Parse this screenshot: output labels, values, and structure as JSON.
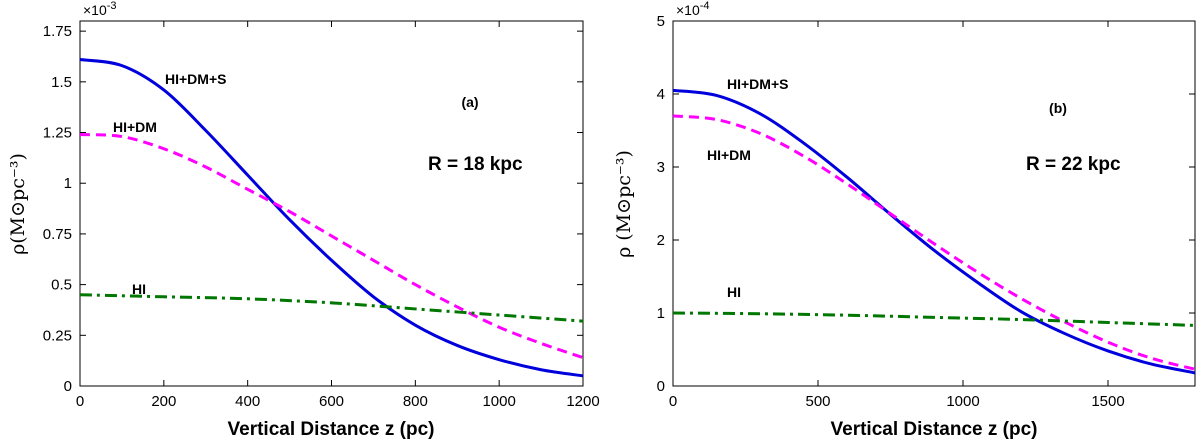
{
  "chart_data": [
    {
      "type": "line",
      "panel_label": "(a)",
      "radius_label": "R = 18 kpc",
      "scale_label": "×10",
      "scale_exp": "-3",
      "xlabel": "Vertical Distance z (pc)",
      "ylabel": "ρ(M⊙pc⁻³)",
      "xlim": [
        0,
        1200
      ],
      "ylim": [
        0,
        1.8
      ],
      "xticks": [
        0,
        200,
        400,
        600,
        800,
        1000,
        1200
      ],
      "xtick_labels": [
        "0",
        "200",
        "400",
        "600",
        "800",
        "1000",
        "1200"
      ],
      "yticks": [
        0,
        0.25,
        0.5,
        0.75,
        1,
        1.25,
        1.5,
        1.75
      ],
      "ytick_labels": [
        "0",
        "0.25",
        "0.5",
        "0.75",
        "1",
        "1.25",
        "1.5",
        "1.75"
      ],
      "series": [
        {
          "name": "HI+DM+S",
          "color": "#0000dd",
          "style": "solid",
          "x": [
            0,
            100,
            200,
            300,
            400,
            500,
            600,
            700,
            800,
            900,
            1000,
            1100,
            1200
          ],
          "y": [
            1.61,
            1.58,
            1.46,
            1.26,
            1.04,
            0.82,
            0.62,
            0.44,
            0.3,
            0.2,
            0.13,
            0.08,
            0.05
          ]
        },
        {
          "name": "HI+DM",
          "color": "#ff00ff",
          "style": "dashed",
          "x": [
            0,
            100,
            200,
            300,
            400,
            500,
            600,
            700,
            800,
            900,
            1000,
            1100,
            1200
          ],
          "y": [
            1.24,
            1.23,
            1.17,
            1.08,
            0.97,
            0.86,
            0.74,
            0.62,
            0.5,
            0.39,
            0.29,
            0.21,
            0.14
          ]
        },
        {
          "name": "HI",
          "color": "#007700",
          "style": "dashdot",
          "x": [
            0,
            200,
            400,
            600,
            800,
            1000,
            1200
          ],
          "y": [
            0.45,
            0.44,
            0.43,
            0.41,
            0.38,
            0.35,
            0.32
          ]
        }
      ]
    },
    {
      "type": "line",
      "panel_label": "(b)",
      "radius_label": "R = 22 kpc",
      "scale_label": "×10",
      "scale_exp": "-4",
      "xlabel": "Vertical Distance  z (pc)",
      "ylabel": "ρ (M⊙pc⁻³)",
      "xlim": [
        0,
        1800
      ],
      "ylim": [
        0,
        5
      ],
      "xticks": [
        0,
        500,
        1000,
        1500
      ],
      "xtick_labels": [
        "0",
        "500",
        "1000",
        "1500"
      ],
      "yticks": [
        0,
        1,
        2,
        3,
        4,
        5
      ],
      "ytick_labels": [
        "0",
        "1",
        "2",
        "3",
        "4",
        "5"
      ],
      "series": [
        {
          "name": "HI+DM+S",
          "color": "#0000dd",
          "style": "solid",
          "x": [
            0,
            150,
            300,
            450,
            600,
            750,
            900,
            1050,
            1200,
            1350,
            1500,
            1650,
            1800
          ],
          "y": [
            4.05,
            3.98,
            3.73,
            3.33,
            2.86,
            2.35,
            1.86,
            1.42,
            1.02,
            0.72,
            0.48,
            0.3,
            0.18
          ]
        },
        {
          "name": "HI+DM",
          "color": "#ff00ff",
          "style": "dashed",
          "x": [
            0,
            150,
            300,
            450,
            600,
            750,
            900,
            1050,
            1200,
            1350,
            1500,
            1650,
            1800
          ],
          "y": [
            3.7,
            3.65,
            3.46,
            3.15,
            2.77,
            2.36,
            1.95,
            1.56,
            1.2,
            0.88,
            0.6,
            0.38,
            0.23
          ]
        },
        {
          "name": "HI",
          "color": "#007700",
          "style": "dashdot",
          "x": [
            0,
            300,
            600,
            900,
            1200,
            1500,
            1800
          ],
          "y": [
            1,
            0.99,
            0.97,
            0.94,
            0.91,
            0.87,
            0.83
          ]
        }
      ]
    }
  ]
}
